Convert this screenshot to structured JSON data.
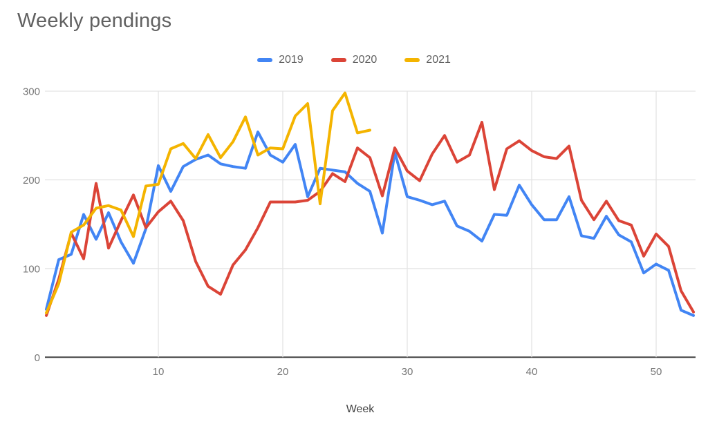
{
  "title": "Weekly pendings",
  "legend": {
    "items": [
      {
        "label": "2019",
        "color": "#4285F4"
      },
      {
        "label": "2020",
        "color": "#DB4437"
      },
      {
        "label": "2021",
        "color": "#F4B400"
      }
    ]
  },
  "colors": {
    "background": "#ffffff",
    "title_text": "#616161",
    "tick_text": "#757575",
    "gridline": "#e3e3e3",
    "axis_line": "#424242",
    "series_2019": "#4285F4",
    "series_2020": "#DB4437",
    "series_2021": "#F4B400"
  },
  "chart_data": {
    "type": "line",
    "title": "Weekly pendings",
    "xlabel": "Week",
    "ylabel": "",
    "xlim": [
      1,
      53
    ],
    "ylim": [
      0,
      300
    ],
    "x_ticks": [
      10,
      20,
      30,
      40,
      50
    ],
    "y_ticks": [
      0,
      100,
      200,
      300
    ],
    "grid": true,
    "legend_position": "top",
    "x": [
      1,
      2,
      3,
      4,
      5,
      6,
      7,
      8,
      9,
      10,
      11,
      12,
      13,
      14,
      15,
      16,
      17,
      18,
      19,
      20,
      21,
      22,
      23,
      24,
      25,
      26,
      27,
      28,
      29,
      30,
      31,
      32,
      33,
      34,
      35,
      36,
      37,
      38,
      39,
      40,
      41,
      42,
      43,
      44,
      45,
      46,
      47,
      48,
      49,
      50,
      51,
      52,
      53
    ],
    "series": [
      {
        "name": "2019",
        "color": "#4285F4",
        "values": [
          54,
          110,
          116,
          161,
          133,
          163,
          130,
          106,
          145,
          216,
          187,
          215,
          223,
          228,
          218,
          215,
          213,
          254,
          228,
          220,
          240,
          181,
          213,
          211,
          209,
          196,
          187,
          140,
          231,
          181,
          177,
          172,
          176,
          148,
          142,
          131,
          161,
          160,
          194,
          172,
          155,
          155,
          181,
          137,
          134,
          159,
          138,
          130,
          95,
          105,
          98,
          53,
          47
        ]
      },
      {
        "name": "2020",
        "color": "#DB4437",
        "values": [
          47,
          88,
          140,
          111,
          196,
          123,
          154,
          183,
          146,
          164,
          176,
          154,
          108,
          80,
          71,
          104,
          121,
          146,
          175,
          175,
          175,
          177,
          187,
          207,
          198,
          236,
          225,
          182,
          236,
          210,
          199,
          229,
          250,
          220,
          228,
          265,
          189,
          235,
          244,
          233,
          226,
          224,
          238,
          177,
          155,
          176,
          154,
          149,
          114,
          139,
          125,
          75,
          51
        ]
      },
      {
        "name": "2021",
        "color": "#F4B400",
        "values": [
          50,
          83,
          141,
          149,
          168,
          171,
          166,
          136,
          193,
          195,
          235,
          241,
          224,
          251,
          225,
          243,
          271,
          228,
          236,
          235,
          272,
          286,
          173,
          278,
          298,
          253,
          256
        ]
      }
    ]
  }
}
